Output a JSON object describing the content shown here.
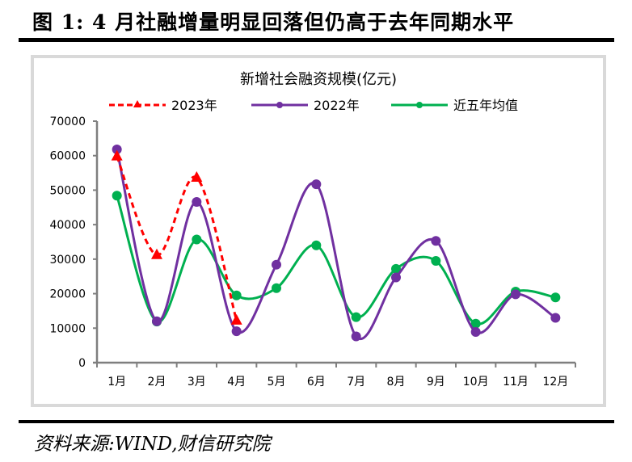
{
  "figure": {
    "title": "图 1:  4 月社融增量明显回落但仍高于去年同期水平",
    "source": "资料来源:WIND,财信研究院"
  },
  "colors": {
    "series_2023": "#ff0000",
    "series_2022": "#7030a0",
    "series_avg": "#00b050",
    "axis": "#7f7f7f",
    "frame": "#d9d9d9"
  },
  "chart_data": {
    "type": "line",
    "title": "新增社会融资规模(亿元)",
    "xlabel": "",
    "ylabel": "",
    "categories": [
      "1月",
      "2月",
      "3月",
      "4月",
      "5月",
      "6月",
      "7月",
      "8月",
      "9月",
      "10月",
      "11月",
      "12月"
    ],
    "ylim": [
      0,
      70000
    ],
    "yticks": [
      0,
      10000,
      20000,
      30000,
      40000,
      50000,
      60000,
      70000
    ],
    "ytick_labels": [
      "0",
      "10000",
      "20000",
      "30000",
      "40000",
      "50000",
      "60000",
      "70000"
    ],
    "grid": false,
    "legend_position": "top",
    "series": [
      {
        "name": "2023年",
        "style": "dashed",
        "marker": "triangle",
        "smooth": true,
        "values": [
          59800,
          31200,
          53600,
          12200,
          null,
          null,
          null,
          null,
          null,
          null,
          null,
          null
        ]
      },
      {
        "name": "2022年",
        "style": "solid",
        "marker": "circle",
        "smooth": true,
        "values": [
          61800,
          12000,
          46600,
          9100,
          28400,
          51700,
          7600,
          24700,
          35300,
          8900,
          19800,
          13000
        ]
      },
      {
        "name": "近五年均值",
        "style": "solid",
        "marker": "circle",
        "smooth": true,
        "values": [
          48400,
          11900,
          35700,
          19500,
          21600,
          34000,
          13200,
          27200,
          29500,
          11300,
          20600,
          18900
        ]
      }
    ]
  }
}
